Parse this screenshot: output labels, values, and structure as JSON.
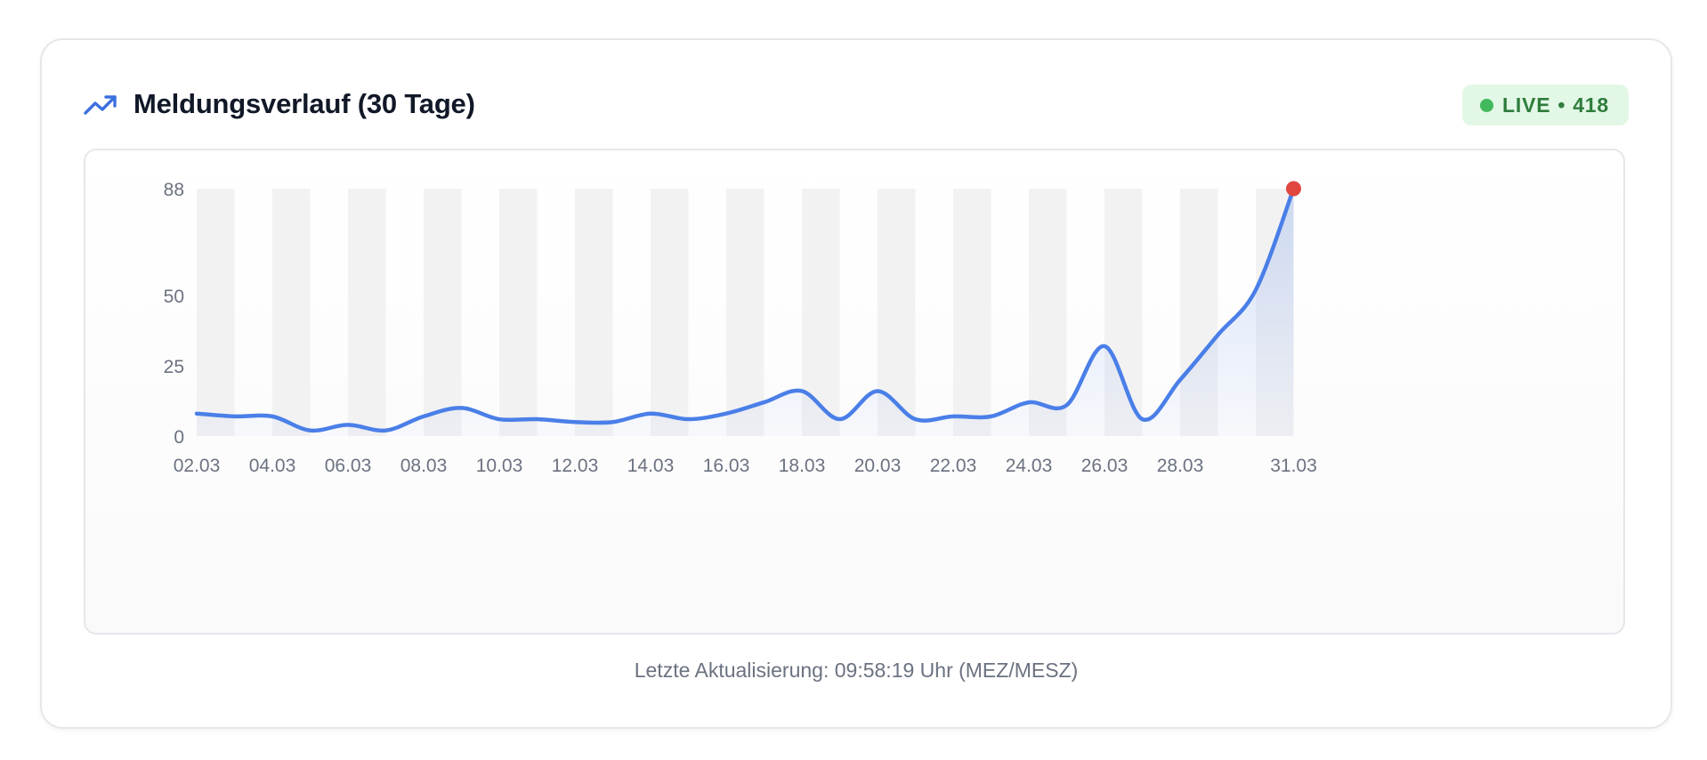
{
  "header": {
    "title": "Meldungsverlauf (30 Tage)",
    "icon": "trending-up-icon",
    "badge": {
      "status": "LIVE",
      "separator": "•",
      "count": "418"
    }
  },
  "footer": {
    "text": "Letzte Aktualisierung: 09:58:19 Uhr (MEZ/MESZ)"
  },
  "colors": {
    "line": "#4a7fe8",
    "highlight_point": "#e0463e",
    "band": "#f2f2f3",
    "live_dot": "#43b95d",
    "live_text": "#2e7d3c",
    "live_bg": "#e3f7e6"
  },
  "chart_data": {
    "type": "area",
    "title": "",
    "xlabel": "",
    "ylabel": "",
    "ylim": [
      0,
      88
    ],
    "y_ticks": [
      0,
      25,
      50,
      88
    ],
    "x_tick_labels": [
      "02.03",
      "04.03",
      "06.03",
      "08.03",
      "10.03",
      "12.03",
      "14.03",
      "16.03",
      "18.03",
      "20.03",
      "22.03",
      "24.03",
      "26.03",
      "28.03",
      "31.03"
    ],
    "x": [
      "02.03",
      "03.03",
      "04.03",
      "05.03",
      "06.03",
      "07.03",
      "08.03",
      "09.03",
      "10.03",
      "11.03",
      "12.03",
      "13.03",
      "14.03",
      "15.03",
      "16.03",
      "17.03",
      "18.03",
      "19.03",
      "20.03",
      "21.03",
      "22.03",
      "23.03",
      "24.03",
      "25.03",
      "26.03",
      "27.03",
      "28.03",
      "29.03",
      "30.03",
      "31.03"
    ],
    "values": [
      8,
      7,
      7,
      2,
      4,
      2,
      7,
      10,
      6,
      6,
      5,
      5,
      8,
      6,
      8,
      12,
      16,
      6,
      16,
      6,
      7,
      7,
      12,
      11,
      32,
      6,
      20,
      36,
      52,
      88
    ],
    "highlight": {
      "x": "31.03",
      "y": 88
    },
    "alternating_bands": true,
    "grid": false,
    "legend": "none"
  }
}
